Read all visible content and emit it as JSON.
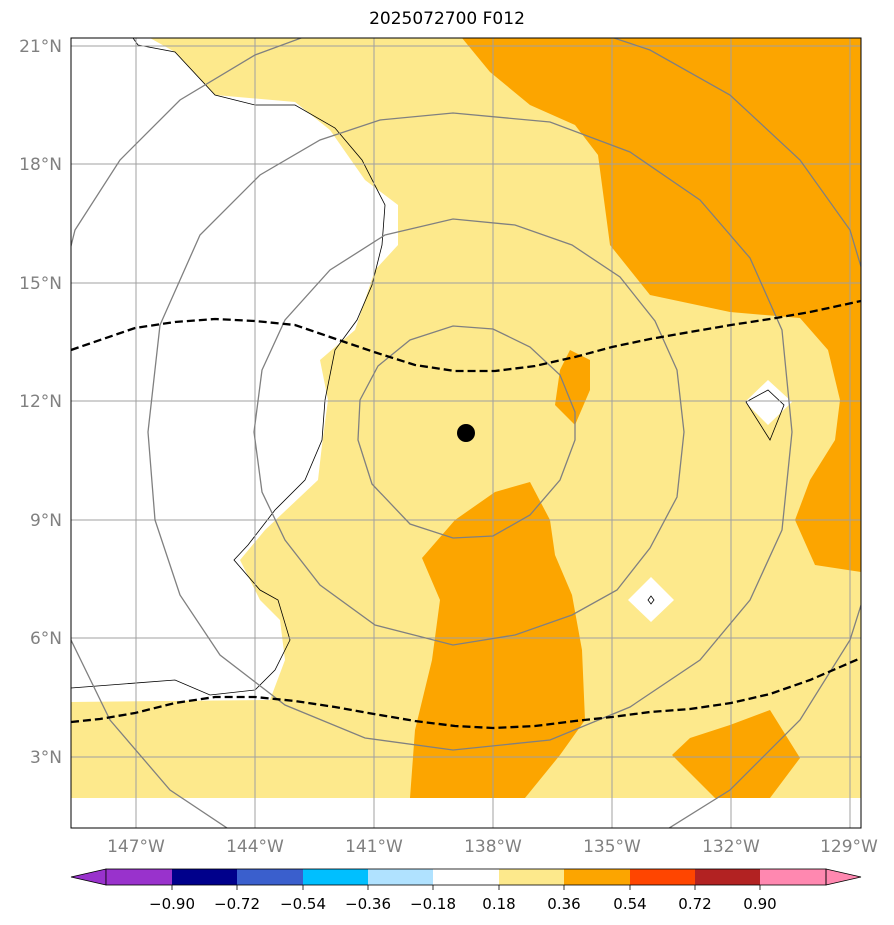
{
  "title": "2025072700 F012",
  "map": {
    "lat_labels": [
      "21°N",
      "18°N",
      "15°N",
      "12°N",
      "9°N",
      "6°N",
      "3°N"
    ],
    "lon_labels": [
      "147°W",
      "144°W",
      "141°W",
      "138°W",
      "135°W",
      "132°W",
      "129°W"
    ],
    "center_marker": {
      "lat": 11.2,
      "lon": -138.7
    },
    "colors": {
      "light": "#fde98c",
      "medium": "#fca500",
      "grid": "#a0a0a0",
      "ring": "#808080"
    }
  },
  "colorbar": {
    "labels": [
      "−0.90",
      "−0.72",
      "−0.54",
      "−0.36",
      "−0.18",
      "0.18",
      "0.36",
      "0.54",
      "0.72",
      "0.90"
    ],
    "colors": [
      "#9932cc",
      "#00008b",
      "#3a5fcd",
      "#00bfff",
      "#b0e2ff",
      "#ffffff",
      "#fde98c",
      "#fca500",
      "#ff4500",
      "#b22222",
      "#ff88b0"
    ]
  }
}
